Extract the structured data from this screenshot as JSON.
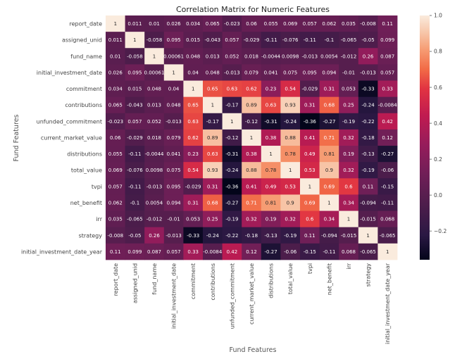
{
  "chart_data": {
    "type": "heatmap",
    "title": "Correlation Matrix for Numeric Features",
    "xlabel": "Fund Features",
    "ylabel": "Fund Features",
    "colormap": "rocket",
    "vmin": -0.36,
    "vmax": 1.0,
    "colorbar_ticks": [
      "1.0",
      "0.8",
      "0.6",
      "0.4",
      "0.2",
      "0.0",
      "−0.2"
    ],
    "colorbar_tick_values": [
      1.0,
      0.8,
      0.6,
      0.4,
      0.2,
      0.0,
      -0.2
    ],
    "labels": [
      "report_date",
      "assigned_unid",
      "fund_name",
      "initial_investment_date",
      "commitment",
      "contributions",
      "unfunded_commitment",
      "current_market_value",
      "distributions",
      "total_value",
      "tvpi",
      "net_benefit",
      "irr",
      "strategy",
      "initial_investment_date_year"
    ],
    "cell_labels": [
      [
        "1",
        "0.011",
        "0.01",
        "0.026",
        "0.034",
        "0.065",
        "-0.023",
        "0.06",
        "0.055",
        "0.069",
        "0.057",
        "0.062",
        "0.035",
        "-0.008",
        "0.11"
      ],
      [
        "0.011",
        "1",
        "-0.058",
        "0.095",
        "0.015",
        "-0.043",
        "0.057",
        "-0.029",
        "-0.11",
        "-0.076",
        "-0.11",
        "-0.1",
        "-0.065",
        "-0.05",
        "0.099"
      ],
      [
        "0.01",
        "-0.058",
        "1",
        "0.00061",
        "0.048",
        "0.013",
        "0.052",
        "0.018",
        "-0.0044",
        "0.0098",
        "-0.013",
        "0.0054",
        "-0.012",
        "0.26",
        "0.087"
      ],
      [
        "0.026",
        "0.095",
        "0.00061",
        "1",
        "0.04",
        "0.048",
        "-0.013",
        "0.079",
        "0.041",
        "0.075",
        "0.095",
        "0.094",
        "-0.01",
        "-0.013",
        "0.057"
      ],
      [
        "0.034",
        "0.015",
        "0.048",
        "0.04",
        "1",
        "0.65",
        "0.63",
        "0.62",
        "0.23",
        "0.54",
        "-0.029",
        "0.31",
        "0.053",
        "-0.33",
        "0.33"
      ],
      [
        "0.065",
        "-0.043",
        "0.013",
        "0.048",
        "0.65",
        "1",
        "-0.17",
        "0.89",
        "0.63",
        "0.93",
        "0.31",
        "0.68",
        "0.25",
        "-0.24",
        "-0.0084"
      ],
      [
        "-0.023",
        "0.057",
        "0.052",
        "-0.013",
        "0.63",
        "-0.17",
        "1",
        "-0.12",
        "-0.31",
        "-0.24",
        "-0.36",
        "-0.27",
        "-0.19",
        "-0.22",
        "0.42"
      ],
      [
        "0.06",
        "-0.029",
        "0.018",
        "0.079",
        "0.62",
        "0.89",
        "-0.12",
        "1",
        "0.38",
        "0.88",
        "0.41",
        "0.71",
        "0.32",
        "-0.18",
        "0.12"
      ],
      [
        "0.055",
        "-0.11",
        "-0.0044",
        "0.041",
        "0.23",
        "0.63",
        "-0.31",
        "0.38",
        "1",
        "0.78",
        "0.49",
        "0.81",
        "0.19",
        "-0.13",
        "-0.27"
      ],
      [
        "0.069",
        "-0.076",
        "0.0098",
        "0.075",
        "0.54",
        "0.93",
        "-0.24",
        "0.88",
        "0.78",
        "1",
        "0.53",
        "0.9",
        "0.32",
        "-0.19",
        "-0.06"
      ],
      [
        "0.057",
        "-0.11",
        "-0.013",
        "0.095",
        "-0.029",
        "0.31",
        "-0.36",
        "0.41",
        "0.49",
        "0.53",
        "1",
        "0.69",
        "0.6",
        "0.11",
        "-0.15"
      ],
      [
        "0.062",
        "-0.1",
        "0.0054",
        "0.094",
        "0.31",
        "0.68",
        "-0.27",
        "0.71",
        "0.81",
        "0.9",
        "0.69",
        "1",
        "0.34",
        "-0.094",
        "-0.11"
      ],
      [
        "0.035",
        "-0.065",
        "-0.012",
        "-0.01",
        "0.053",
        "0.25",
        "-0.19",
        "0.32",
        "0.19",
        "0.32",
        "0.6",
        "0.34",
        "1",
        "-0.015",
        "0.068"
      ],
      [
        "-0.008",
        "-0.05",
        "0.26",
        "-0.013",
        "-0.33",
        "-0.24",
        "-0.22",
        "-0.18",
        "-0.13",
        "-0.19",
        "0.11",
        "-0.094",
        "-0.015",
        "1",
        "-0.065"
      ],
      [
        "0.11",
        "0.099",
        "0.087",
        "0.057",
        "0.33",
        "-0.0084",
        "0.42",
        "0.12",
        "-0.27",
        "-0.06",
        "-0.15",
        "-0.11",
        "0.068",
        "-0.065",
        "1"
      ]
    ]
  }
}
